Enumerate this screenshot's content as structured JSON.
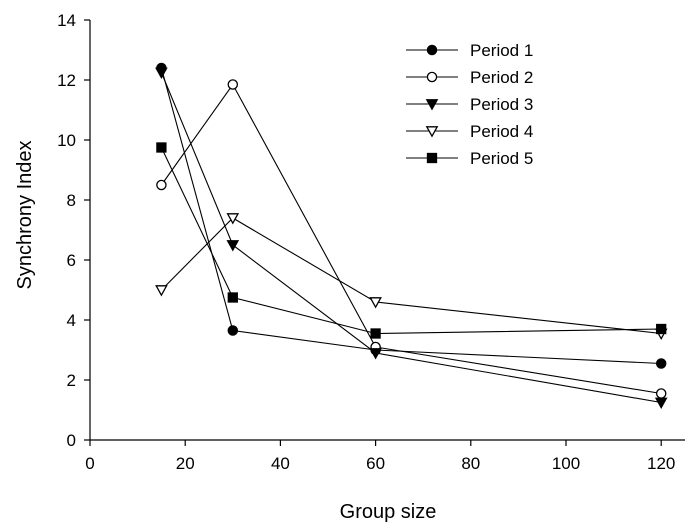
{
  "chart_data": {
    "type": "line",
    "title": "",
    "xlabel": "Group size",
    "ylabel": "Synchrony Index",
    "xlim": [
      0,
      125
    ],
    "ylim": [
      0,
      14
    ],
    "xticks": [
      0,
      20,
      40,
      60,
      80,
      100,
      120
    ],
    "yticks": [
      0,
      2,
      4,
      6,
      8,
      10,
      12,
      14
    ],
    "grid": false,
    "legend_position": "top-right",
    "x": [
      15,
      30,
      60,
      120
    ],
    "series": [
      {
        "name": "Period 1",
        "marker": "circle-filled",
        "values": [
          12.4,
          3.65,
          3.0,
          2.55
        ]
      },
      {
        "name": "Period 2",
        "marker": "circle-open",
        "values": [
          8.5,
          11.85,
          3.1,
          1.55
        ]
      },
      {
        "name": "Period 3",
        "marker": "triangle-down-filled",
        "values": [
          12.25,
          6.5,
          2.9,
          1.25
        ]
      },
      {
        "name": "Period 4",
        "marker": "triangle-down-open",
        "values": [
          5.0,
          7.4,
          4.6,
          3.55
        ]
      },
      {
        "name": "Period 5",
        "marker": "square-filled",
        "values": [
          9.75,
          4.75,
          3.55,
          3.7
        ]
      }
    ]
  }
}
